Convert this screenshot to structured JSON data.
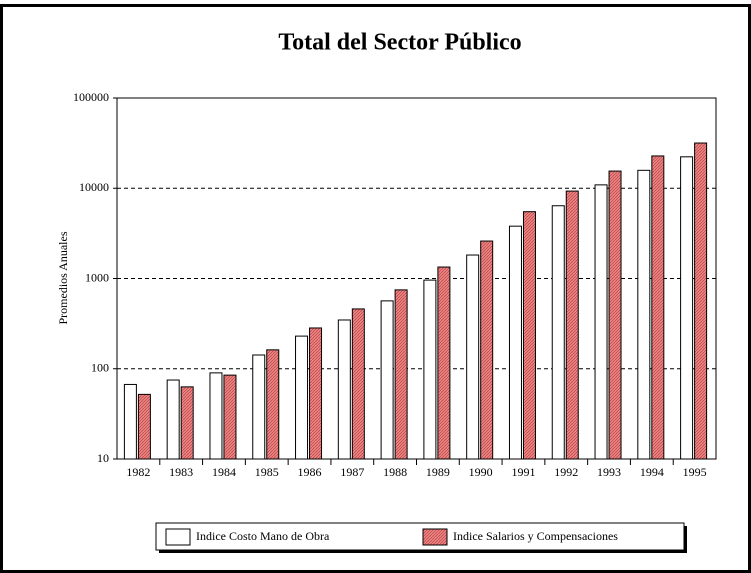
{
  "chart_data": {
    "type": "bar",
    "title": "Total del Sector Público",
    "y_label": "Promedios Anuales",
    "categories": [
      "1982",
      "1983",
      "1984",
      "1985",
      "1986",
      "1987",
      "1988",
      "1989",
      "1990",
      "1991",
      "1992",
      "1993",
      "1994",
      "1995"
    ],
    "series": [
      {
        "name": "Indice Costo Mano de Obra",
        "color": "#ffffff",
        "values": [
          67,
          75,
          90,
          142,
          230,
          347,
          565,
          960,
          1820,
          3800,
          6400,
          10900,
          15800,
          22300
        ]
      },
      {
        "name": "Indice Salarios y Compensaciones",
        "color": "#f08080",
        "values": [
          52,
          63,
          85,
          162,
          283,
          460,
          748,
          1340,
          2600,
          5500,
          9300,
          15500,
          22800,
          31700
        ]
      }
    ],
    "log_scale": true,
    "ylim": [
      10,
      100000
    ],
    "yticks": [
      10,
      100,
      1000,
      10000,
      100000
    ],
    "grid": true,
    "legend": "bottom"
  }
}
